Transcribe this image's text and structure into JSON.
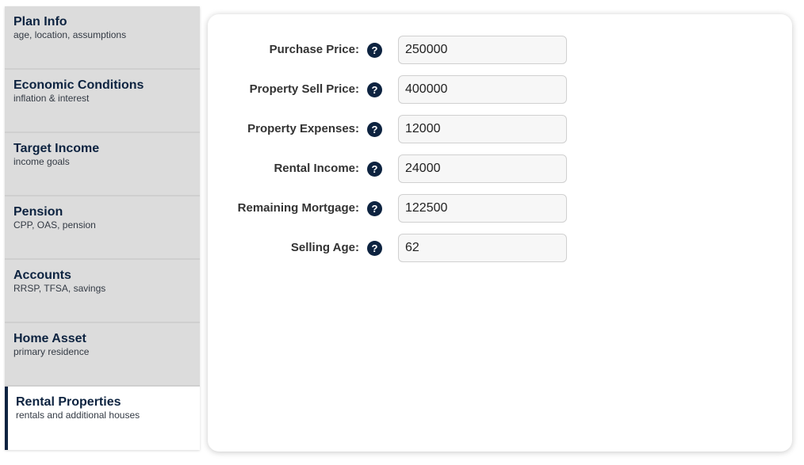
{
  "sidebar": {
    "items": [
      {
        "title": "Plan Info",
        "subtitle": "age, location, assumptions"
      },
      {
        "title": "Economic Conditions",
        "subtitle": "inflation & interest"
      },
      {
        "title": "Target Income",
        "subtitle": "income goals"
      },
      {
        "title": "Pension",
        "subtitle": "CPP, OAS, pension"
      },
      {
        "title": "Accounts",
        "subtitle": "RRSP, TFSA, savings"
      },
      {
        "title": "Home Asset",
        "subtitle": "primary residence"
      },
      {
        "title": "Rental Properties",
        "subtitle": "rentals and additional houses",
        "active": true
      }
    ]
  },
  "form": {
    "help_glyph": "?",
    "fields": [
      {
        "label": "Purchase Price:",
        "value": "250000"
      },
      {
        "label": "Property Sell Price:",
        "value": "400000"
      },
      {
        "label": "Property Expenses:",
        "value": "12000"
      },
      {
        "label": "Rental Income:",
        "value": "24000"
      },
      {
        "label": "Remaining Mortgage:",
        "value": "122500"
      },
      {
        "label": "Selling Age:",
        "value": "62"
      }
    ]
  },
  "colors": {
    "accent": "#0d2340",
    "nav_bg": "#dcdcdc"
  }
}
